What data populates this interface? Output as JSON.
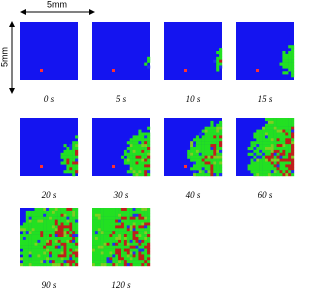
{
  "scale_bar": {
    "horizontal": "5mm",
    "vertical": "5mm"
  },
  "panels": [
    {
      "time": "0 s"
    },
    {
      "time": "5 s"
    },
    {
      "time": "10 s"
    },
    {
      "time": "15 s"
    },
    {
      "time": "20 s"
    },
    {
      "time": "30 s"
    },
    {
      "time": "40 s"
    },
    {
      "time": "60 s"
    },
    {
      "time": "90 s"
    },
    {
      "time": "120 s"
    }
  ]
}
